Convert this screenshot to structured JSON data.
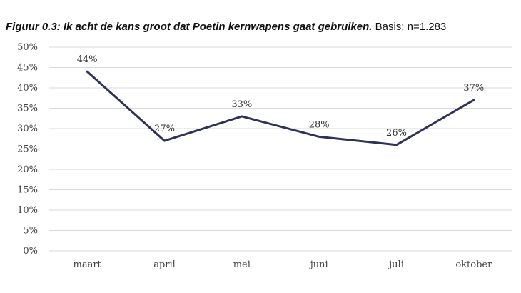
{
  "chart_data": {
    "type": "line",
    "title": "Figuur 0.3: Ik acht de kans groot dat Poetin kernwapens gaat gebruiken.",
    "subtitle": "Basis: n=1.283",
    "xlabel": "",
    "ylabel": "",
    "categories": [
      "maart",
      "april",
      "mei",
      "juni",
      "juli",
      "oktober"
    ],
    "y_ticks": [
      "0%",
      "5%",
      "10%",
      "15%",
      "20%",
      "25%",
      "30%",
      "35%",
      "40%",
      "45%",
      "50%"
    ],
    "ylim": [
      0,
      50
    ],
    "grid": true,
    "series": [
      {
        "values": [
          44,
          27,
          33,
          28,
          26,
          37
        ],
        "labels": [
          "44%",
          "27%",
          "33%",
          "28%",
          "26%",
          "37%"
        ],
        "color": "#2f3159"
      }
    ]
  }
}
